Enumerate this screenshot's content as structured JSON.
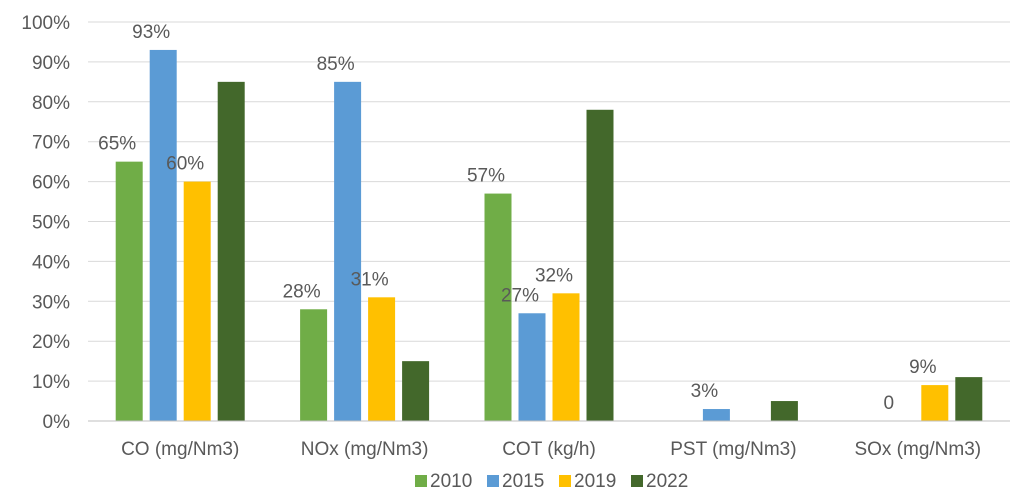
{
  "chart_data": {
    "type": "bar",
    "categories": [
      "CO (mg/Nm3)",
      "NOx (mg/Nm3)",
      "COT (kg/h)",
      "PST (mg/Nm3)",
      "SOx (mg/Nm3)"
    ],
    "series": [
      {
        "name": "2010",
        "color": "#70ad47",
        "values": [
          65,
          28,
          57,
          null,
          null
        ],
        "labels": [
          "65%",
          "28%",
          "57%",
          "",
          ""
        ]
      },
      {
        "name": "2015",
        "color": "#5b9bd5",
        "values": [
          93,
          85,
          27,
          3,
          0
        ],
        "labels": [
          "93%",
          "85%",
          "27%",
          "3%",
          "0"
        ]
      },
      {
        "name": "2019",
        "color": "#ffc000",
        "values": [
          60,
          31,
          32,
          null,
          9
        ],
        "labels": [
          "60%",
          "31%",
          "32%",
          "",
          "9%"
        ]
      },
      {
        "name": "2022",
        "color": "#43682b",
        "values": [
          85,
          15,
          78,
          5,
          11
        ],
        "labels": [
          "",
          "",
          "",
          "",
          ""
        ]
      }
    ],
    "ylim": [
      0,
      100
    ],
    "yticks": [
      "0%",
      "10%",
      "20%",
      "30%",
      "40%",
      "50%",
      "60%",
      "70%",
      "80%",
      "90%",
      "100%"
    ],
    "grid": true,
    "legend": "bottom",
    "title": "",
    "xlabel": "",
    "ylabel": ""
  }
}
